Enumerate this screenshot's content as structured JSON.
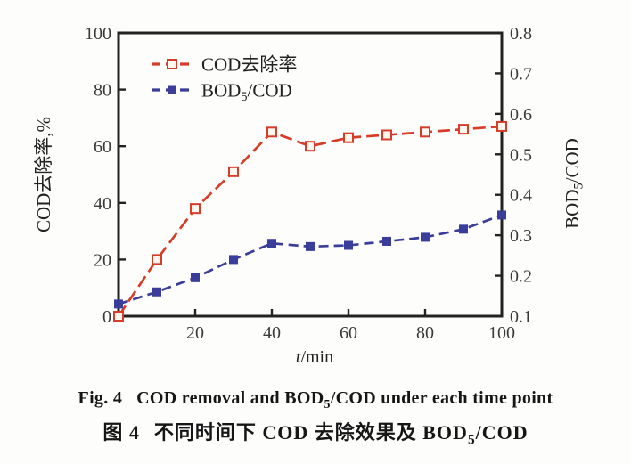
{
  "caption_en": {
    "fig_label": "Fig. 4",
    "text_pre_sub": "COD removal and BOD",
    "sub": "5",
    "text_post_sub": "/COD under each time point"
  },
  "caption_zh": {
    "fig_label": "图 4",
    "text_pre_sub": "不同时间下 COD 去除效果及 BOD",
    "sub": "5",
    "text_post_sub": "/COD"
  },
  "chart_data": {
    "type": "line",
    "x": [
      0,
      10,
      20,
      30,
      40,
      50,
      60,
      70,
      80,
      90,
      100
    ],
    "x_min": 0,
    "x_max": 100,
    "x_ticks": [
      20,
      40,
      60,
      80,
      100
    ],
    "xlabel": {
      "italic": "t",
      "rest": "/min"
    },
    "axes": {
      "left": {
        "label": "COD去除率,%",
        "min": 0,
        "max": 100,
        "ticks": [
          0,
          20,
          40,
          60,
          80,
          100
        ],
        "decimals": 0
      },
      "right": {
        "label": {
          "pre": "BOD",
          "sub": "5",
          "post": "/COD"
        },
        "min": 0.1,
        "max": 0.8,
        "ticks": [
          0.1,
          0.2,
          0.3,
          0.4,
          0.5,
          0.6,
          0.7,
          0.8
        ],
        "decimals": 1
      }
    },
    "series": [
      {
        "name": "cod-removal",
        "label": {
          "pre": "COD去除率",
          "sub": "",
          "post": ""
        },
        "axis": "left",
        "color": "#d63c28",
        "marker": "open-square",
        "marker_fill": "#fdf7ef",
        "values": [
          0,
          20,
          38,
          51,
          65,
          60,
          63,
          64,
          65,
          66,
          67
        ]
      },
      {
        "name": "bod5-cod",
        "label": {
          "pre": "BOD",
          "sub": "5",
          "post": "/COD"
        },
        "axis": "right",
        "color": "#3a3d9a",
        "marker": "filled-square",
        "marker_fill": "#3a3d9a",
        "values": [
          0.13,
          0.16,
          0.195,
          0.24,
          0.28,
          0.272,
          0.275,
          0.285,
          0.295,
          0.315,
          0.35
        ]
      }
    ],
    "legend_position": "top-left-inside",
    "grid": false,
    "frame_color": "#222222",
    "tick_text_color": "#3a3a3a"
  }
}
